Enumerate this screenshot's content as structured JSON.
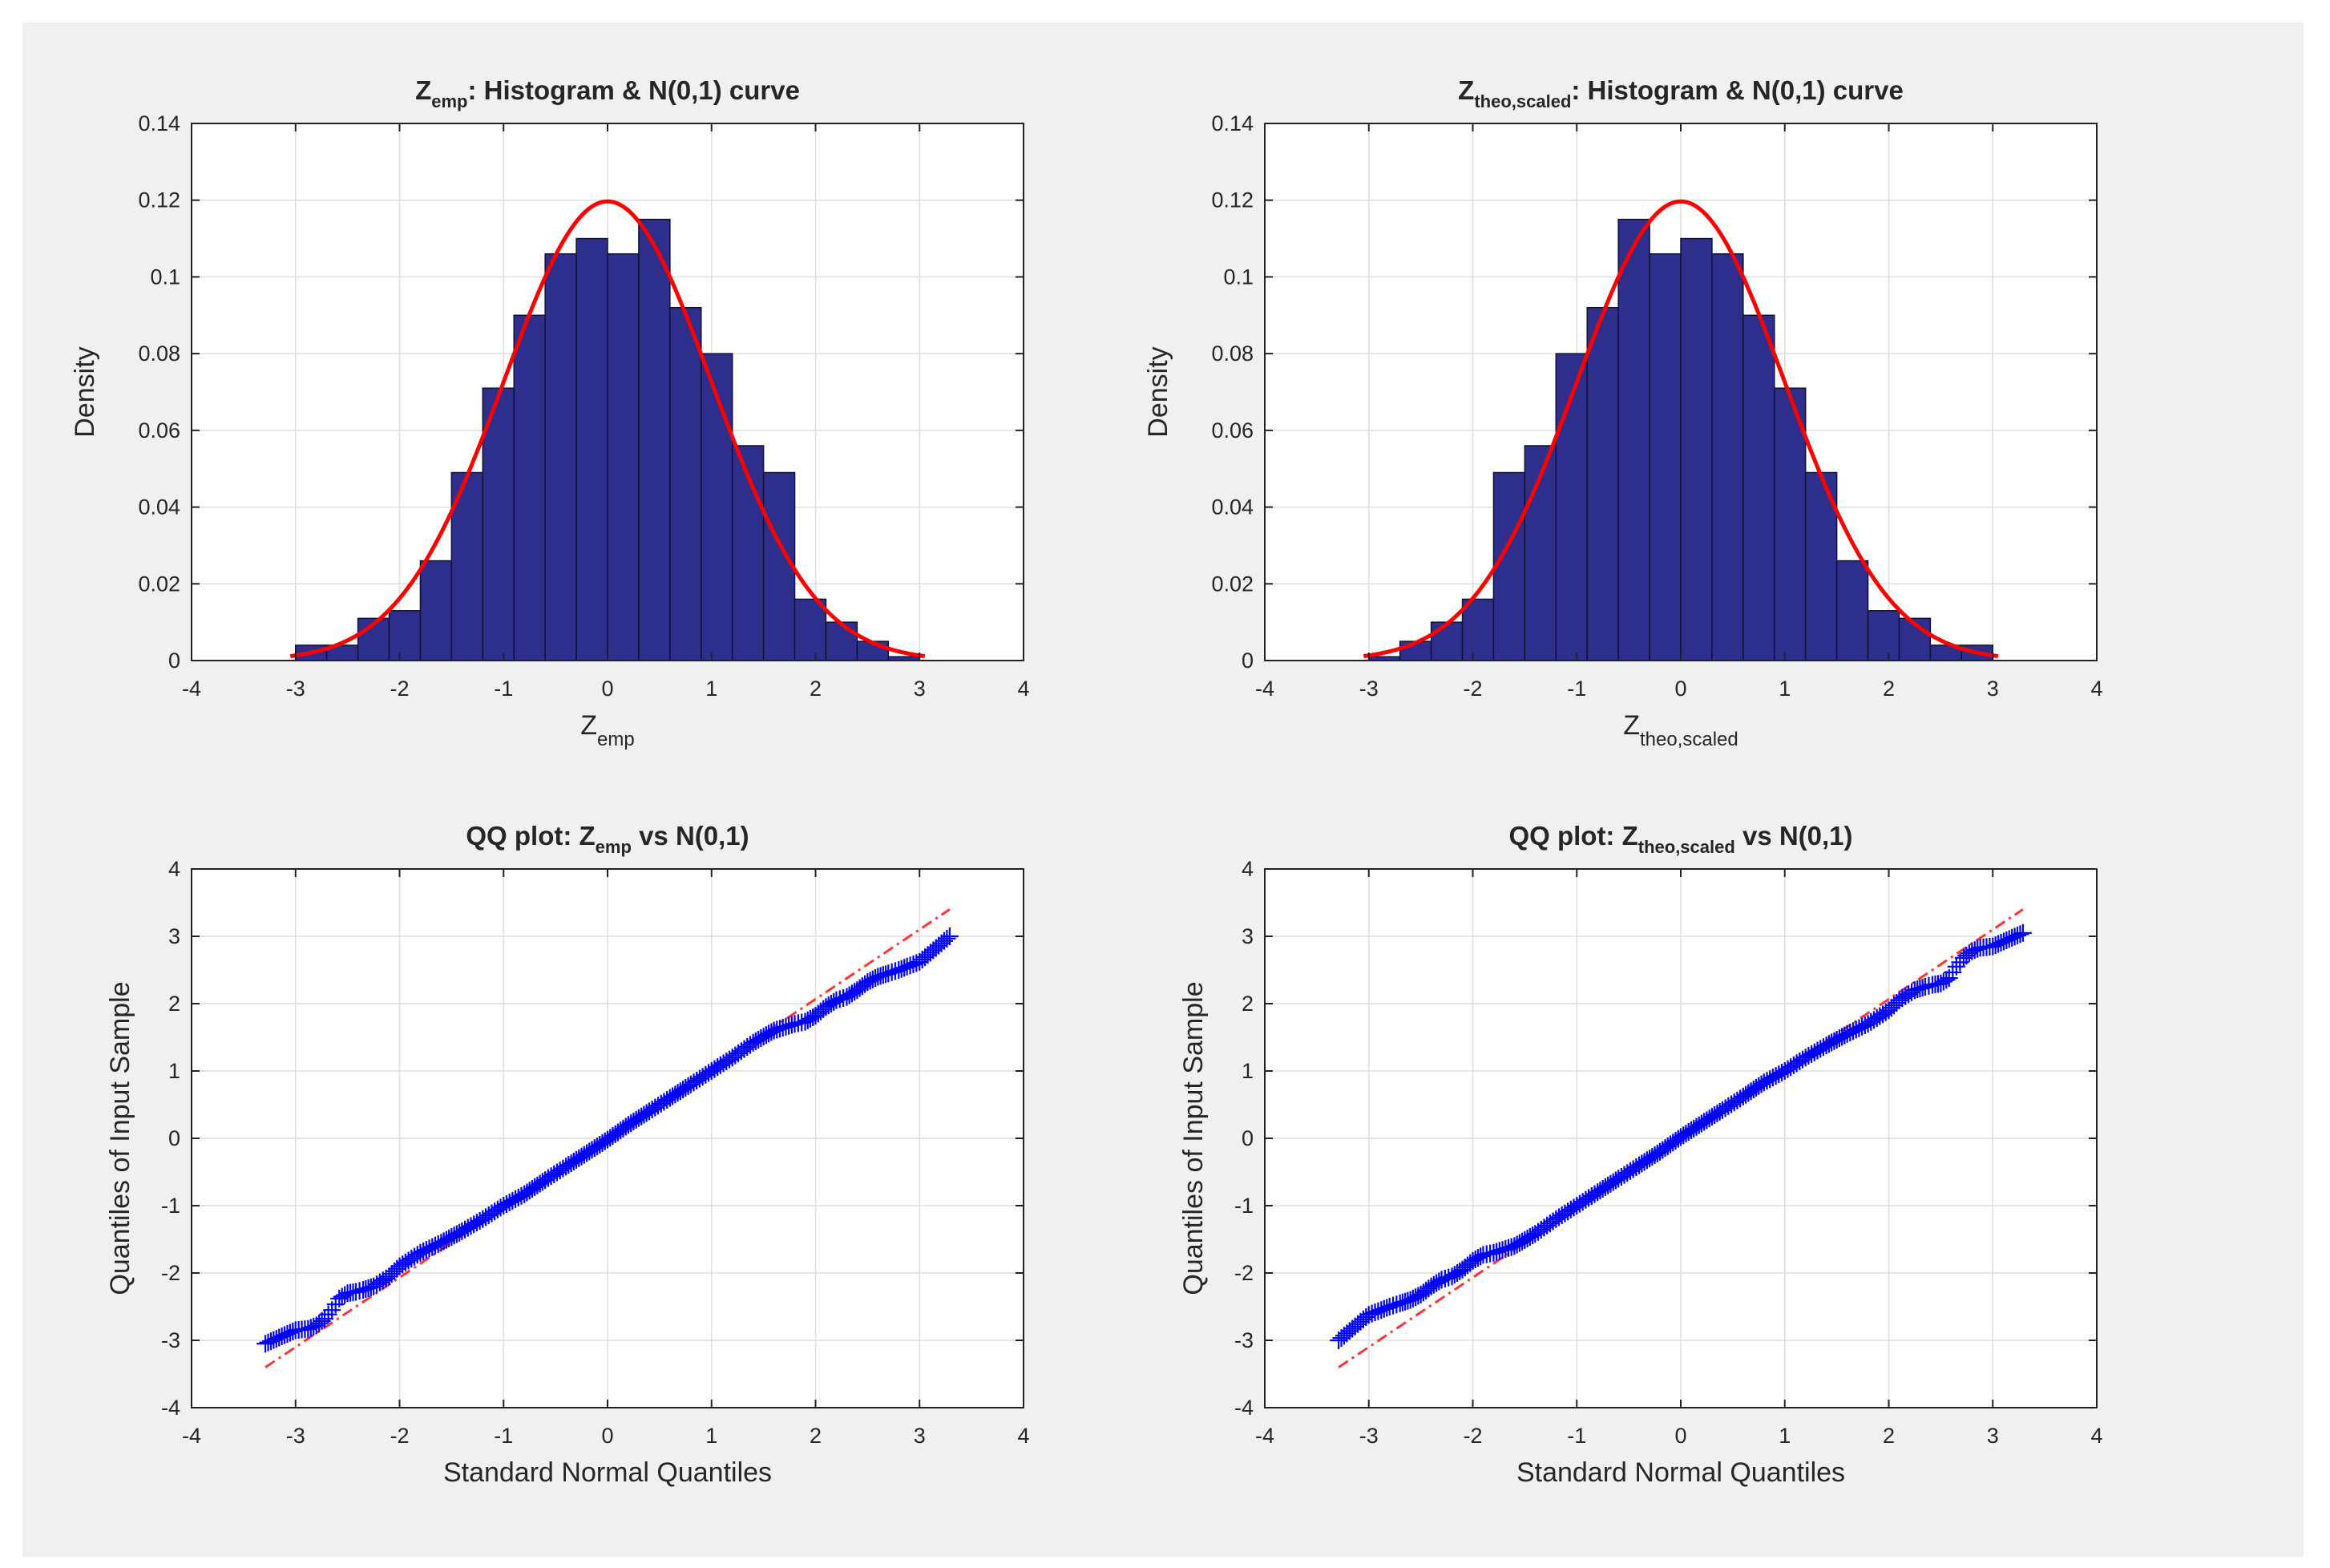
{
  "colors": {
    "background": "#f0f0f0",
    "axes_bg": "#ffffff",
    "bar_fill": "#2e2e8c",
    "bar_edge": "#111133",
    "curve": "#ff0000",
    "qq_marker": "#0000ff",
    "ref_line": "#ff3333",
    "grid": "#dddddd",
    "axis": "#222222",
    "text": "#262626"
  },
  "chart_data": [
    {
      "id": "hist-emp",
      "type": "bar",
      "title": {
        "main": "Z",
        "sub": "emp",
        "rest": ": Histogram & N(0,1) curve"
      },
      "xlabel": {
        "main": "Z",
        "sub": "emp"
      },
      "ylabel": "Density",
      "xlim": [
        -4,
        4
      ],
      "ylim": [
        0,
        0.14
      ],
      "xticks": [
        "-4",
        "-3",
        "-2",
        "-1",
        "0",
        "1",
        "2",
        "3",
        "4"
      ],
      "xtick_values": [
        -4,
        -3,
        -2,
        -1,
        0,
        1,
        2,
        3,
        4
      ],
      "yticks": [
        "0",
        "0.02",
        "0.04",
        "0.06",
        "0.08",
        "0.1",
        "0.12",
        "0.14"
      ],
      "ytick_values": [
        0,
        0.02,
        0.04,
        0.06,
        0.08,
        0.1,
        0.12,
        0.14
      ],
      "grid": true,
      "bin_edges": [
        -3.0,
        -2.7,
        -2.4,
        -2.1,
        -1.8,
        -1.5,
        -1.2,
        -0.9,
        -0.6,
        -0.3,
        0.0,
        0.3,
        0.6,
        0.9,
        1.2,
        1.5,
        1.8,
        2.1,
        2.4,
        2.7,
        3.0
      ],
      "values": [
        0.004,
        0.004,
        0.011,
        0.013,
        0.026,
        0.049,
        0.071,
        0.09,
        0.106,
        0.11,
        0.106,
        0.115,
        0.092,
        0.08,
        0.056,
        0.049,
        0.016,
        0.01,
        0.005,
        0.001
      ],
      "curve": {
        "label": "N(0,1) curve",
        "mean": 0,
        "std": 1,
        "scale": 0.3,
        "range": [
          -3.05,
          3.05
        ]
      }
    },
    {
      "id": "hist-theo",
      "type": "bar",
      "title": {
        "main": "Z",
        "sub": "theo,scaled",
        "rest": ": Histogram & N(0,1) curve"
      },
      "xlabel": {
        "main": "Z",
        "sub": "theo,scaled"
      },
      "ylabel": "Density",
      "xlim": [
        -4,
        4
      ],
      "ylim": [
        0,
        0.14
      ],
      "xticks": [
        "-4",
        "-3",
        "-2",
        "-1",
        "0",
        "1",
        "2",
        "3",
        "4"
      ],
      "xtick_values": [
        -4,
        -3,
        -2,
        -1,
        0,
        1,
        2,
        3,
        4
      ],
      "yticks": [
        "0",
        "0.02",
        "0.04",
        "0.06",
        "0.08",
        "0.1",
        "0.12",
        "0.14"
      ],
      "ytick_values": [
        0,
        0.02,
        0.04,
        0.06,
        0.08,
        0.1,
        0.12,
        0.14
      ],
      "grid": true,
      "bin_edges": [
        -3.0,
        -2.7,
        -2.4,
        -2.1,
        -1.8,
        -1.5,
        -1.2,
        -0.9,
        -0.6,
        -0.3,
        0.0,
        0.3,
        0.6,
        0.9,
        1.2,
        1.5,
        1.8,
        2.1,
        2.4,
        2.7,
        3.0
      ],
      "values": [
        0.001,
        0.005,
        0.01,
        0.016,
        0.049,
        0.056,
        0.08,
        0.092,
        0.115,
        0.106,
        0.11,
        0.106,
        0.09,
        0.071,
        0.049,
        0.026,
        0.013,
        0.011,
        0.004,
        0.004
      ],
      "curve": {
        "label": "N(0,1) curve",
        "mean": 0,
        "std": 1,
        "scale": 0.3,
        "range": [
          -3.05,
          3.05
        ]
      }
    },
    {
      "id": "qq-emp",
      "type": "scatter",
      "title": {
        "main": "QQ plot: Z",
        "sub": "emp",
        "rest": " vs N(0,1)"
      },
      "xlabel": {
        "main": "Standard Normal Quantiles",
        "sub": ""
      },
      "ylabel": "Quantiles of Input Sample",
      "xlim": [
        -4,
        4
      ],
      "ylim": [
        -4,
        4
      ],
      "xticks": [
        "-4",
        "-3",
        "-2",
        "-1",
        "0",
        "1",
        "2",
        "3",
        "4"
      ],
      "xtick_values": [
        -4,
        -3,
        -2,
        -1,
        0,
        1,
        2,
        3,
        4
      ],
      "yticks": [
        "-4",
        "-3",
        "-2",
        "-1",
        "0",
        "1",
        "2",
        "3",
        "4"
      ],
      "ytick_values": [
        -4,
        -3,
        -2,
        -1,
        0,
        1,
        2,
        3,
        4
      ],
      "grid": true,
      "x": [
        -3.29,
        -3.0,
        -2.88,
        -2.8,
        -2.72,
        -2.65,
        -2.58,
        -2.5,
        -2.42,
        -2.35,
        -2.25,
        -2.1,
        -2.0,
        -1.8,
        -1.6,
        -1.4,
        -1.2,
        -1.0,
        -0.8,
        -0.6,
        -0.4,
        -0.2,
        0.0,
        0.2,
        0.4,
        0.6,
        0.8,
        1.0,
        1.2,
        1.4,
        1.6,
        1.8,
        1.9,
        2.0,
        2.1,
        2.2,
        2.3,
        2.4,
        2.5,
        2.6,
        2.7,
        2.8,
        2.88,
        3.0,
        3.29
      ],
      "y": [
        -3.05,
        -2.85,
        -2.83,
        -2.78,
        -2.68,
        -2.55,
        -2.38,
        -2.3,
        -2.28,
        -2.25,
        -2.2,
        -2.05,
        -1.9,
        -1.7,
        -1.55,
        -1.38,
        -1.2,
        -1.0,
        -0.83,
        -0.62,
        -0.42,
        -0.22,
        -0.02,
        0.2,
        0.4,
        0.6,
        0.8,
        1.0,
        1.2,
        1.42,
        1.6,
        1.7,
        1.73,
        1.82,
        1.95,
        2.05,
        2.1,
        2.2,
        2.32,
        2.4,
        2.45,
        2.5,
        2.55,
        2.62,
        3.0
      ],
      "ref_line": {
        "x0": -3.29,
        "y0": -3.4,
        "x1": 3.29,
        "y1": 3.4
      }
    },
    {
      "id": "qq-theo",
      "type": "scatter",
      "title": {
        "main": "QQ plot: Z",
        "sub": "theo,scaled",
        "rest": " vs N(0,1)"
      },
      "xlabel": {
        "main": "Standard Normal Quantiles",
        "sub": ""
      },
      "ylabel": "Quantiles of Input Sample",
      "xlim": [
        -4,
        4
      ],
      "ylim": [
        -4,
        4
      ],
      "xticks": [
        "-4",
        "-3",
        "-2",
        "-1",
        "0",
        "1",
        "2",
        "3",
        "4"
      ],
      "xtick_values": [
        -4,
        -3,
        -2,
        -1,
        0,
        1,
        2,
        3,
        4
      ],
      "yticks": [
        "-4",
        "-3",
        "-2",
        "-1",
        "0",
        "1",
        "2",
        "3",
        "4"
      ],
      "ytick_values": [
        -4,
        -3,
        -2,
        -1,
        0,
        1,
        2,
        3,
        4
      ],
      "grid": true,
      "x": [
        -3.29,
        -3.0,
        -2.88,
        -2.8,
        -2.7,
        -2.6,
        -2.5,
        -2.4,
        -2.3,
        -2.2,
        -2.1,
        -2.0,
        -1.9,
        -1.8,
        -1.6,
        -1.4,
        -1.2,
        -1.0,
        -0.8,
        -0.6,
        -0.4,
        -0.2,
        0.0,
        0.2,
        0.4,
        0.6,
        0.8,
        1.0,
        1.2,
        1.4,
        1.6,
        1.8,
        2.0,
        2.1,
        2.25,
        2.35,
        2.42,
        2.5,
        2.58,
        2.65,
        2.72,
        2.8,
        2.88,
        3.0,
        3.29
      ],
      "y": [
        -3.0,
        -2.62,
        -2.55,
        -2.5,
        -2.45,
        -2.4,
        -2.32,
        -2.2,
        -2.1,
        -2.05,
        -1.95,
        -1.82,
        -1.73,
        -1.7,
        -1.6,
        -1.42,
        -1.2,
        -1.0,
        -0.8,
        -0.6,
        -0.4,
        -0.2,
        0.02,
        0.22,
        0.42,
        0.62,
        0.83,
        1.0,
        1.2,
        1.38,
        1.55,
        1.7,
        1.9,
        2.05,
        2.2,
        2.25,
        2.28,
        2.3,
        2.38,
        2.55,
        2.68,
        2.78,
        2.83,
        2.85,
        3.05
      ],
      "ref_line": {
        "x0": -3.29,
        "y0": -3.4,
        "x1": 3.29,
        "y1": 3.4
      }
    }
  ]
}
